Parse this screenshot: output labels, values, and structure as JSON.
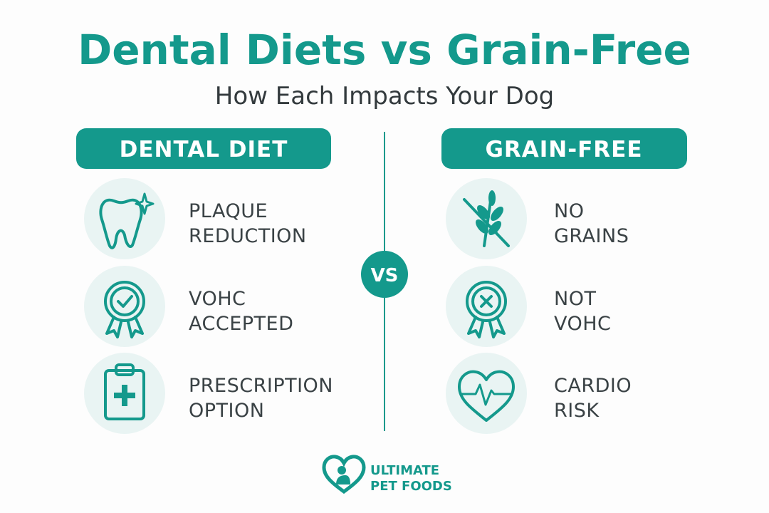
{
  "title": "Dental Diets vs Grain-Free",
  "subtitle": "How Each Impacts Your Dog",
  "left": {
    "heading": "DENTAL DIET",
    "items": [
      {
        "lines": [
          "PLAQUE",
          "REDUCTION"
        ]
      },
      {
        "lines": [
          "VOHC",
          "ACCEPTED"
        ]
      },
      {
        "lines": [
          "PRESCRIPTION",
          "OPTION"
        ]
      }
    ]
  },
  "vs": "VS",
  "right": {
    "heading": "GRAIN-FREE",
    "items": [
      {
        "lines": [
          "NO",
          "GRAINS"
        ]
      },
      {
        "lines": [
          "NOT",
          "VOHC"
        ]
      },
      {
        "lines": [
          "CARDIO",
          "RISK"
        ]
      }
    ]
  },
  "brand": {
    "lines": [
      "ULTIMATE",
      "PET FOODS"
    ]
  }
}
